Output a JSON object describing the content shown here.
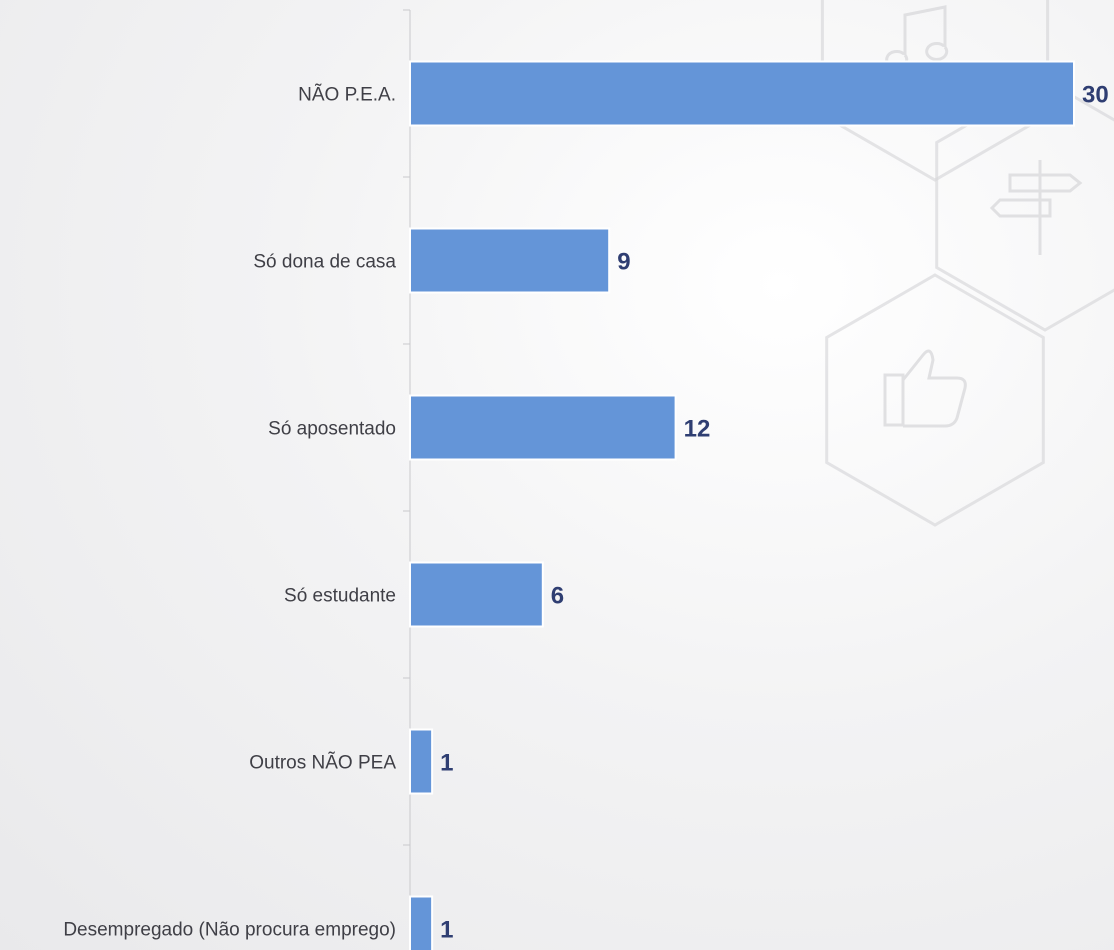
{
  "colors": {
    "bar": "#6495d8",
    "bar_stroke": "#ffffff",
    "value_label": "#2f3e72",
    "category_label": "#3f3f46",
    "axis": "#c9c9cc",
    "watermark": "#d9d9dc"
  },
  "background_icons": [
    "music-note-icon",
    "signpost-icon",
    "thumbs-up-icon"
  ],
  "chart_data": {
    "type": "bar",
    "orientation": "horizontal",
    "categories": [
      "NÃO P.E.A.",
      "Só dona de casa",
      "Só aposentado",
      "Só estudante",
      "Outros NÃO PEA",
      "Desempregado (Não procura emprego)"
    ],
    "values": [
      30,
      9,
      12,
      6,
      1,
      1
    ],
    "value_labels": [
      "30",
      "9",
      "12",
      "6",
      "1",
      "1"
    ],
    "title": "",
    "xlabel": "",
    "ylabel": "",
    "xlim": [
      0,
      30
    ],
    "grid": false,
    "legend": "none"
  }
}
